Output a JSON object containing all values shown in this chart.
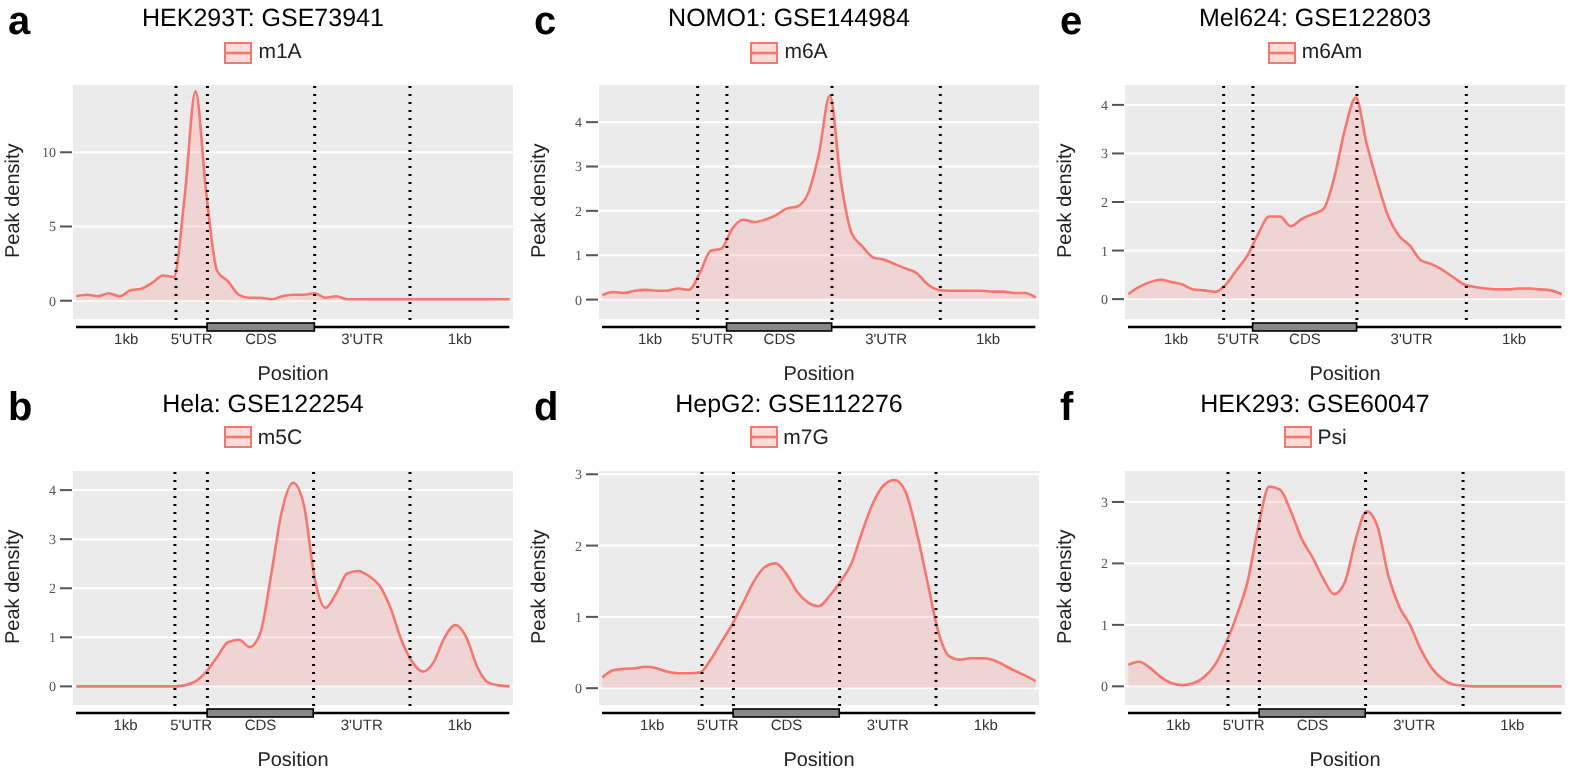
{
  "chart_data": [
    {
      "type": "area",
      "title": "HEK293T: GSE73941",
      "xlabel": "Position",
      "ylabel": "Peak density",
      "annotations": [
        "a",
        "1kb",
        "5'UTR",
        "CDS",
        "3'UTR",
        "1kb"
      ],
      "legend": "top",
      "grid": true,
      "ylim": [
        -1.3,
        14.6
      ],
      "yticks": [
        0,
        5,
        10
      ],
      "tick_labels": "y",
      "categories": [
        null,
        null,
        null,
        null,
        null,
        null,
        null,
        null,
        null,
        null,
        null,
        null,
        null,
        null,
        null,
        null,
        null,
        null,
        null,
        null,
        null,
        null,
        null,
        null,
        null,
        null,
        null,
        null,
        null,
        null,
        null,
        null,
        null,
        null,
        null,
        null,
        null,
        null,
        null,
        null,
        null
      ],
      "series": [
        {
          "name": "m1A",
          "color": "#f8766d",
          "values": [
            0.3,
            0.4,
            0.3,
            0.5,
            0.3,
            0.7,
            0.8,
            1.2,
            1.7,
            1.6,
            7,
            14.1,
            7.2,
            2.0,
            1.3,
            0.4,
            0.2,
            0.2,
            0.1,
            0.3,
            0.4,
            0.4,
            0.5,
            0.2,
            0.3,
            0.1,
            0.1,
            0.1,
            0.1,
            0.1,
            0.1,
            0.1,
            0.1,
            0.1,
            0.1,
            0.1,
            0.1,
            0.1,
            0.1,
            0.1,
            0.1
          ]
        }
      ]
    },
    {
      "type": "area",
      "title": "NOMO1: GSE144984",
      "xlabel": "Position",
      "ylabel": "Peak density",
      "annotations": [
        "c",
        "1kb",
        "5'UTR",
        "CDS",
        "3'UTR",
        "1kb"
      ],
      "legend": "top",
      "grid": true,
      "ylim": [
        -0.46,
        4.86
      ],
      "yticks": [
        0,
        1,
        2,
        3,
        4
      ],
      "tick_labels": "y",
      "categories": [
        null,
        null,
        null,
        null,
        null,
        null,
        null,
        null,
        null,
        null,
        null,
        null,
        null,
        null,
        null,
        null,
        null,
        null,
        null,
        null,
        null,
        null,
        null,
        null,
        null,
        null,
        null,
        null,
        null,
        null,
        null,
        null,
        null,
        null,
        null,
        null,
        null,
        null,
        null,
        null,
        null
      ],
      "series": [
        {
          "name": "m6A",
          "color": "#f8766d",
          "values": [
            0.1,
            0.17,
            0.15,
            0.2,
            0.22,
            0.2,
            0.2,
            0.25,
            0.22,
            0.6,
            1.1,
            1.15,
            1.6,
            1.8,
            1.75,
            1.8,
            1.9,
            2.05,
            2.1,
            2.4,
            3.3,
            4.6,
            2.7,
            1.5,
            1.2,
            0.95,
            0.9,
            0.8,
            0.7,
            0.6,
            0.35,
            0.22,
            0.2,
            0.2,
            0.2,
            0.2,
            0.18,
            0.18,
            0.15,
            0.15,
            0.05
          ]
        }
      ]
    },
    {
      "type": "area",
      "title": "Mel624: GSE122803",
      "xlabel": "Position",
      "ylabel": "Peak density",
      "annotations": [
        "e",
        "1kb",
        "5'UTR",
        "CDS",
        "3'UTR",
        "1kb"
      ],
      "legend": "top",
      "grid": true,
      "ylim": [
        -0.43,
        4.43
      ],
      "yticks": [
        0,
        1,
        2,
        3,
        4
      ],
      "tick_labels": "y",
      "categories": [
        null,
        null,
        null,
        null,
        null,
        null,
        null,
        null,
        null,
        null,
        null,
        null,
        null,
        null,
        null,
        null,
        null,
        null,
        null,
        null,
        null,
        null,
        null,
        null,
        null,
        null,
        null,
        null,
        null,
        null,
        null,
        null,
        null,
        null,
        null,
        null,
        null,
        null,
        null,
        null,
        null
      ],
      "series": [
        {
          "name": "m6Am",
          "color": "#f8766d",
          "values": [
            0.1,
            0.25,
            0.35,
            0.4,
            0.35,
            0.3,
            0.2,
            0.18,
            0.15,
            0.3,
            0.6,
            0.9,
            1.35,
            1.7,
            1.7,
            1.5,
            1.65,
            1.75,
            1.85,
            2.5,
            3.5,
            4.15,
            3.2,
            2.4,
            1.7,
            1.3,
            1.1,
            0.8,
            0.72,
            0.6,
            0.45,
            0.3,
            0.25,
            0.22,
            0.2,
            0.2,
            0.22,
            0.22,
            0.2,
            0.18,
            0.1
          ]
        }
      ]
    },
    {
      "type": "area",
      "title": "Hela: GSE122254",
      "xlabel": "Position",
      "ylabel": "Peak density",
      "annotations": [
        "b",
        "1kb",
        "5'UTR",
        "CDS",
        "3'UTR",
        "1kb"
      ],
      "legend": "top",
      "grid": true,
      "ylim": [
        -0.4,
        4.41
      ],
      "yticks": [
        0,
        1,
        2,
        3,
        4
      ],
      "tick_labels": "y",
      "categories": [
        null,
        null,
        null,
        null,
        null,
        null,
        null,
        null,
        null,
        null,
        null,
        null,
        null,
        null,
        null,
        null,
        null,
        null,
        null,
        null,
        null,
        null,
        null,
        null,
        null,
        null,
        null,
        null,
        null,
        null,
        null,
        null,
        null,
        null,
        null,
        null,
        null,
        null,
        null,
        null,
        null
      ],
      "series": [
        {
          "name": "m5C",
          "color": "#f8766d",
          "values": [
            0,
            0,
            0,
            0,
            0,
            0,
            0,
            0,
            0,
            0,
            0.02,
            0.1,
            0.3,
            0.6,
            0.9,
            0.95,
            0.8,
            1.1,
            2.3,
            3.6,
            4.15,
            3.7,
            2.2,
            1.6,
            1.9,
            2.3,
            2.35,
            2.25,
            2.05,
            1.6,
            0.95,
            0.5,
            0.3,
            0.5,
            1.0,
            1.25,
            1.0,
            0.4,
            0.08,
            0.02,
            0
          ]
        }
      ]
    },
    {
      "type": "area",
      "title": "HepG2: GSE112276",
      "xlabel": "Position",
      "ylabel": "Peak density",
      "annotations": [
        "d",
        "1kb",
        "5'UTR",
        "CDS",
        "3'UTR",
        "1kb"
      ],
      "legend": "top",
      "grid": true,
      "ylim": [
        -0.25,
        3.06
      ],
      "yticks": [
        0,
        1,
        2,
        3
      ],
      "tick_labels": "y",
      "categories": [
        null,
        null,
        null,
        null,
        null,
        null,
        null,
        null,
        null,
        null,
        null,
        null,
        null,
        null,
        null,
        null,
        null,
        null,
        null,
        null,
        null,
        null,
        null,
        null,
        null,
        null,
        null,
        null,
        null,
        null,
        null,
        null,
        null,
        null,
        null,
        null,
        null,
        null,
        null,
        null,
        null
      ],
      "series": [
        {
          "name": "m7G",
          "color": "#f8766d",
          "values": [
            0.15,
            0.25,
            0.27,
            0.28,
            0.3,
            0.28,
            0.23,
            0.21,
            0.21,
            0.22,
            0.4,
            0.65,
            0.9,
            1.2,
            1.5,
            1.7,
            1.75,
            1.6,
            1.35,
            1.2,
            1.15,
            1.3,
            1.5,
            1.75,
            2.2,
            2.6,
            2.85,
            2.92,
            2.75,
            2.2,
            1.5,
            0.8,
            0.45,
            0.4,
            0.42,
            0.42,
            0.4,
            0.33,
            0.25,
            0.18,
            0.1
          ]
        }
      ]
    },
    {
      "type": "area",
      "title": "HEK293: GSE60047",
      "xlabel": "Position",
      "ylabel": "Peak density",
      "annotations": [
        "f",
        "1kb",
        "5'UTR",
        "CDS",
        "3'UTR",
        "1kb"
      ],
      "legend": "top",
      "grid": true,
      "ylim": [
        -0.32,
        3.52
      ],
      "yticks": [
        0,
        1,
        2,
        3
      ],
      "tick_labels": "y",
      "categories": [
        null,
        null,
        null,
        null,
        null,
        null,
        null,
        null,
        null,
        null,
        null,
        null,
        null,
        null,
        null,
        null,
        null,
        null,
        null,
        null,
        null,
        null,
        null,
        null,
        null,
        null,
        null,
        null,
        null,
        null,
        null,
        null,
        null,
        null,
        null,
        null,
        null,
        null,
        null,
        null,
        null
      ],
      "series": [
        {
          "name": "Psi",
          "color": "#f8766d",
          "values": [
            0.35,
            0.4,
            0.3,
            0.15,
            0.05,
            0.02,
            0.05,
            0.15,
            0.35,
            0.7,
            1.15,
            1.7,
            2.6,
            3.25,
            3.2,
            2.85,
            2.4,
            2.1,
            1.75,
            1.5,
            1.7,
            2.4,
            2.85,
            2.6,
            1.8,
            1.3,
            1.0,
            0.6,
            0.3,
            0.12,
            0.03,
            0.01,
            0,
            0,
            0,
            0,
            0,
            0,
            0,
            0,
            0
          ]
        }
      ]
    }
  ]
}
